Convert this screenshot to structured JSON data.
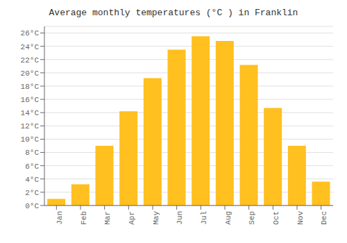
{
  "chart_data": {
    "type": "bar",
    "title": "Average monthly temperatures (°C ) in Franklin",
    "categories": [
      "Jan",
      "Feb",
      "Mar",
      "Apr",
      "May",
      "Jun",
      "Jul",
      "Aug",
      "Sep",
      "Oct",
      "Nov",
      "Dec"
    ],
    "values": [
      1.0,
      3.2,
      9.0,
      14.2,
      19.2,
      23.5,
      25.5,
      24.8,
      21.2,
      14.7,
      9.0,
      3.6
    ],
    "color": "#FFC020",
    "ylim": [
      0,
      27
    ],
    "yticks": [
      {
        "value": 0,
        "label": "0°C"
      },
      {
        "value": 2,
        "label": "2°C"
      },
      {
        "value": 4,
        "label": "4°C"
      },
      {
        "value": 6,
        "label": "6°C"
      },
      {
        "value": 8,
        "label": "8°C"
      },
      {
        "value": 10,
        "label": "10°C"
      },
      {
        "value": 12,
        "label": "12°C"
      },
      {
        "value": 14,
        "label": "14°C"
      },
      {
        "value": 16,
        "label": "16°C"
      },
      {
        "value": 18,
        "label": "18°C"
      },
      {
        "value": 20,
        "label": "20°C"
      },
      {
        "value": 22,
        "label": "22°C"
      },
      {
        "value": 24,
        "label": "24°C"
      },
      {
        "value": 26,
        "label": "26°C"
      }
    ],
    "grid": true
  }
}
